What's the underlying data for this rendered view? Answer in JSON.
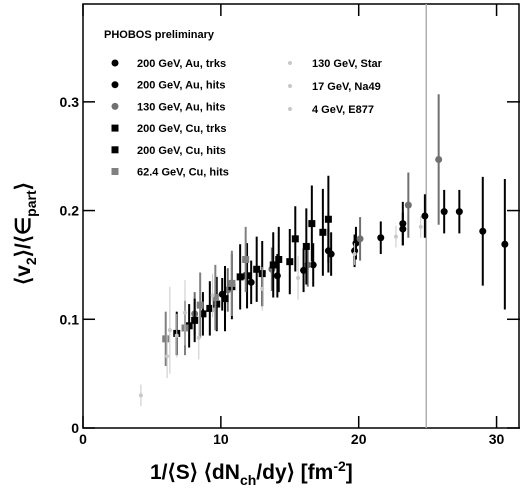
{
  "chart_data": {
    "type": "scatter",
    "legend_title": "PHOBOS preliminary",
    "xlabel": [
      "1/⟨S⟩ ⟨dN",
      "ch",
      "/dy⟩ [fm",
      "-2",
      "]"
    ],
    "ylabel": [
      "⟨v",
      "2",
      "⟩/⟨∈",
      "part",
      "⟩"
    ],
    "xlim": [
      0,
      31.7
    ],
    "ylim": [
      0,
      0.39
    ],
    "xticks": [
      0,
      10,
      20,
      30
    ],
    "yticks": [
      0,
      0.1,
      0.2,
      0.3
    ],
    "vline": 24.9,
    "series": [
      {
        "name": "200 GeV, Au, trks",
        "color": "#000000",
        "marker": "circle",
        "x": [
          16.0,
          18.0,
          19.8,
          21.6,
          23.2,
          24.8,
          26.2,
          27.3
        ],
        "values": [
          0.145,
          0.16,
          0.17,
          0.175,
          0.183,
          0.195,
          0.199,
          0.199
        ],
        "errors": [
          0.02,
          0.02,
          0.015,
          0.015,
          0.015,
          0.02,
          0.02,
          0.02
        ]
      },
      {
        "name": "200 GeV, Au, hits",
        "color": "#000000",
        "marker": "circle",
        "x": [
          10.1,
          12.2,
          14.1,
          16.7,
          17.8,
          19.7,
          23.2,
          29.0,
          30.6
        ],
        "values": [
          0.123,
          0.134,
          0.14,
          0.15,
          0.163,
          0.163,
          0.188,
          0.181,
          0.169
        ],
        "errors": [
          0.015,
          0.02,
          0.02,
          0.02,
          0.02,
          0.015,
          0.02,
          0.05,
          0.06
        ]
      },
      {
        "name": "130 GeV, Au, hits",
        "color": "#707070",
        "marker": "circle",
        "x": [
          8.1,
          10.5,
          13.7,
          16.3,
          20.1,
          23.6,
          25.8
        ],
        "values": [
          0.105,
          0.127,
          0.146,
          0.15,
          0.174,
          0.205,
          0.247
        ],
        "errors": [
          0.02,
          0.02,
          0.02,
          0.02,
          0.02,
          0.03,
          0.06
        ]
      },
      {
        "name": "200 GeV, Cu, trks",
        "color": "#000000",
        "marker": "square",
        "x": [
          6.8,
          8.1,
          9.2,
          10.3,
          11.4,
          12.6,
          13.8,
          15.0,
          16.2,
          17.4
        ],
        "values": [
          0.087,
          0.099,
          0.11,
          0.119,
          0.139,
          0.146,
          0.15,
          0.153,
          0.167,
          0.18
        ],
        "errors": [
          0.02,
          0.02,
          0.025,
          0.03,
          0.03,
          0.03,
          0.03,
          0.03,
          0.035,
          0.04
        ]
      },
      {
        "name": "200 GeV, Cu, hits",
        "color": "#000000",
        "marker": "square",
        "x": [
          7.7,
          8.7,
          9.7,
          10.8,
          11.9,
          13.0,
          14.2,
          15.4,
          16.6,
          17.8
        ],
        "values": [
          0.094,
          0.105,
          0.114,
          0.13,
          0.14,
          0.142,
          0.155,
          0.174,
          0.188,
          0.192
        ],
        "errors": [
          0.02,
          0.02,
          0.025,
          0.03,
          0.03,
          0.03,
          0.03,
          0.03,
          0.035,
          0.04
        ]
      },
      {
        "name": "62.4 GeV, Cu, hits",
        "color": "#808080",
        "marker": "square",
        "x": [
          6.0,
          7.4,
          8.5,
          9.6,
          10.8,
          11.8
        ],
        "values": [
          0.082,
          0.092,
          0.113,
          0.12,
          0.133,
          0.155
        ],
        "errors": [
          0.025,
          0.025,
          0.03,
          0.03,
          0.03,
          0.03
        ]
      },
      {
        "name": "130 GeV, Star",
        "color": "#c8c8c8",
        "marker": "small",
        "x": [
          6.3,
          7.4,
          9.4,
          13.0,
          15.6,
          19.7,
          22.7,
          24.5
        ],
        "values": [
          0.09,
          0.106,
          0.122,
          0.128,
          0.138,
          0.16,
          0.176,
          0.185
        ],
        "errors": [
          0.04,
          0.03,
          0.02,
          0.02,
          0.02,
          0.01,
          0.01,
          0.01
        ]
      },
      {
        "name": "17 GeV, Na49",
        "color": "#c8c8c8",
        "marker": "small",
        "x": [
          6.1,
          6.8,
          8.4
        ],
        "values": [
          0.066,
          0.085,
          0.083
        ],
        "errors": [
          0.02,
          0.02,
          0.02
        ]
      },
      {
        "name": "4 GeV, E877",
        "color": "#c8c8c8",
        "marker": "small",
        "x": [
          4.2
        ],
        "values": [
          0.03
        ],
        "errors": [
          0.01
        ]
      }
    ]
  }
}
